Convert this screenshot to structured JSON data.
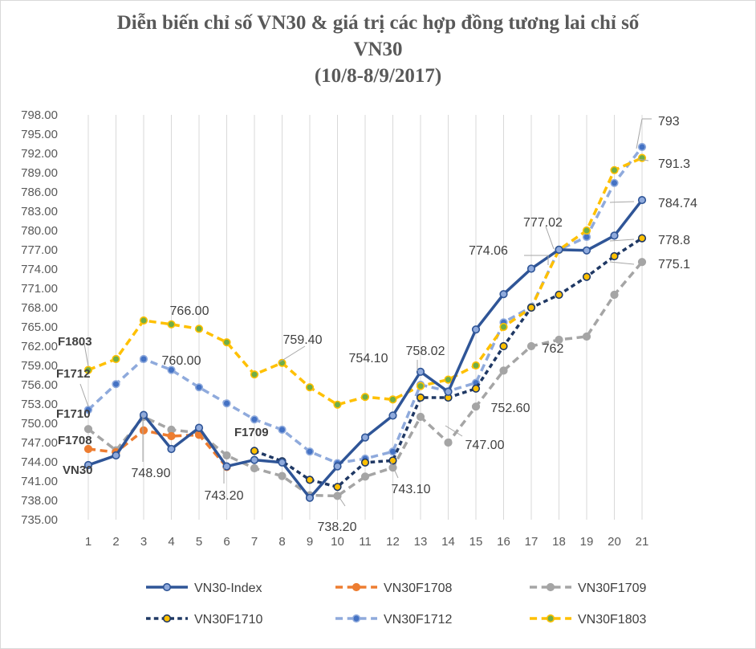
{
  "chart_data": {
    "type": "line",
    "title_lines": [
      "Diễn biến chỉ số VN30 & giá trị các hợp đồng tương lai chỉ số",
      "VN30",
      "(10/8-8/9/2017)"
    ],
    "categories": [
      "1",
      "2",
      "3",
      "4",
      "5",
      "6",
      "7",
      "8",
      "9",
      "10",
      "11",
      "12",
      "13",
      "14",
      "15",
      "16",
      "17",
      "18",
      "19",
      "20",
      "21"
    ],
    "y_ticks": [
      "735.00",
      "738.00",
      "741.00",
      "744.00",
      "747.00",
      "750.00",
      "753.00",
      "756.00",
      "759.00",
      "762.00",
      "765.00",
      "768.00",
      "771.00",
      "774.00",
      "777.00",
      "780.00",
      "783.00",
      "786.00",
      "789.00",
      "792.00",
      "795.00",
      "798.00"
    ],
    "ylim": [
      735,
      798
    ],
    "grid": "vertical",
    "legend_position": "bottom",
    "series": [
      {
        "name": "VN30-Index",
        "color": "#2f5597",
        "marker_fill": "#8faadc",
        "dash": "solid",
        "values": [
          743.5,
          745,
          751.3,
          746,
          749.3,
          743.3,
          744.3,
          743.9,
          738.4,
          743.3,
          747.8,
          751.2,
          758.02,
          754.9,
          764.6,
          770.1,
          774.06,
          777.02,
          776.9,
          779.2,
          784.74
        ]
      },
      {
        "name": "VN30F1708",
        "color": "#ed7d31",
        "marker_fill": "#ed7d31",
        "dash": "dash",
        "values": [
          746,
          745.5,
          748.9,
          748,
          748.2,
          743.2,
          null,
          null,
          null,
          null,
          null,
          null,
          null,
          null,
          null,
          null,
          null,
          null,
          null,
          null,
          null
        ]
      },
      {
        "name": "VN30F1709",
        "color": "#a5a5a5",
        "marker_fill": "#a5a5a5",
        "dash": "dash",
        "values": [
          749.1,
          745.8,
          751,
          749,
          748.5,
          745,
          743,
          741.8,
          738.8,
          738.7,
          741.7,
          743.1,
          751,
          747,
          752.6,
          758.2,
          762,
          763,
          763.5,
          770,
          775.1
        ]
      },
      {
        "name": "VN30F1710",
        "color": "#1f3864",
        "marker_fill": "#ffc000",
        "dash": "dot",
        "values": [
          null,
          null,
          null,
          null,
          null,
          null,
          745.7,
          744.1,
          741.2,
          740.1,
          743.9,
          744.2,
          754,
          754,
          755.4,
          762,
          768,
          770,
          772.8,
          776,
          778.8
        ]
      },
      {
        "name": "VN30F1712",
        "color": "#8faadc",
        "marker_fill": "#4472c4",
        "dash": "dash",
        "values": [
          752.1,
          756.1,
          760,
          758.3,
          755.6,
          753.1,
          750.6,
          749,
          745.6,
          743.8,
          744.5,
          745.6,
          756,
          755,
          756.3,
          765.7,
          768.1,
          777,
          779,
          787.4,
          793
        ]
      },
      {
        "name": "VN30F1803",
        "color": "#ffc000",
        "marker_fill": "#70ad47",
        "dash": "dash",
        "values": [
          758.3,
          760,
          766,
          765.4,
          764.7,
          762.6,
          757.6,
          759.4,
          755.6,
          752.9,
          754.1,
          753.7,
          755.8,
          756.8,
          759,
          765,
          768,
          777,
          780,
          789.4,
          791.3
        ]
      }
    ],
    "annotations": [
      {
        "text": "766.00"
      },
      {
        "text": "760.00"
      },
      {
        "text": "759.40"
      },
      {
        "text": "754.10"
      },
      {
        "text": "758.02"
      },
      {
        "text": "748.90"
      },
      {
        "text": "743.20"
      },
      {
        "text": "738.20"
      },
      {
        "text": "743.10"
      },
      {
        "text": "747.00"
      },
      {
        "text": "752.60"
      },
      {
        "text": "762"
      },
      {
        "text": "774.06"
      },
      {
        "text": "777.02"
      },
      {
        "text": "793"
      },
      {
        "text": "791.3"
      },
      {
        "text": "784.74"
      },
      {
        "text": "778.8"
      },
      {
        "text": "775.1"
      }
    ],
    "series_labels": [
      {
        "text": "F1803"
      },
      {
        "text": "F1712"
      },
      {
        "text": "F1710"
      },
      {
        "text": "F1708"
      },
      {
        "text": "VN30"
      },
      {
        "text": "F1709"
      }
    ]
  }
}
